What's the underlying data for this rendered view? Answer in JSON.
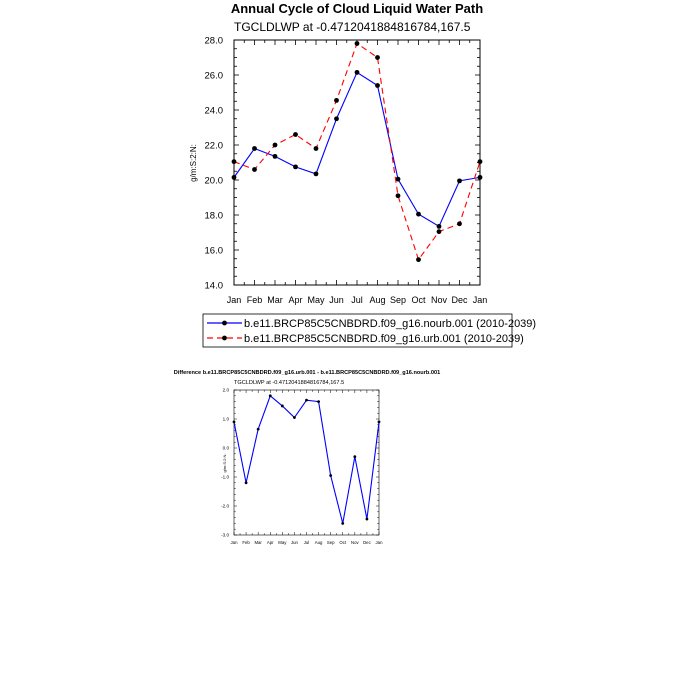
{
  "months": [
    "Jan",
    "Feb",
    "Mar",
    "Apr",
    "May",
    "Jun",
    "Jul",
    "Aug",
    "Sep",
    "Oct",
    "Nov",
    "Dec",
    "Jan"
  ],
  "chart_data": [
    {
      "type": "line",
      "title": "Annual Cycle of Cloud Liquid Water Path",
      "subtitle": "TGCLDLWP at -0.4712041884816784,167.5",
      "xlabel": "",
      "ylabel": "g/m:S:2:N:",
      "ylim": [
        14.0,
        28.0
      ],
      "yticks": [
        "14.0",
        "16.0",
        "18.0",
        "20.0",
        "22.0",
        "24.0",
        "26.0",
        "28.0"
      ],
      "grid": false,
      "legend_placement": "bottom",
      "series": [
        {
          "name": "b.e11.BRCP85C5CNBDRD.f09_g16.nourb.001 (2010-2039)",
          "color": "#0000ff",
          "dash": "solid",
          "values": [
            20.15,
            21.8,
            21.35,
            20.75,
            20.35,
            23.5,
            26.15,
            25.4,
            20.05,
            18.05,
            17.35,
            19.95,
            20.15
          ]
        },
        {
          "name": "b.e11.BRCP85C5CNBDRD.f09_g16.urb.001 (2010-2039)",
          "color": "#ff0000",
          "dash": "dashed",
          "values": [
            21.05,
            20.6,
            22.0,
            22.6,
            21.8,
            24.55,
            27.8,
            27.0,
            19.1,
            15.45,
            17.05,
            17.5,
            21.05
          ]
        }
      ]
    },
    {
      "type": "line",
      "title": "Difference b.e11.BRCP85C5CNBDRD.f09_g16.urb.001 - b.e11.BRCP85C5CNBDRD.f09_g16.nourb.001",
      "subtitle": "TGCLDLWP at -0.4712041884816784,167.5",
      "xlabel": "",
      "ylabel": "g/m:S:2:N:",
      "ylim": [
        -3.0,
        2.0
      ],
      "yticks": [
        "-3.0",
        "-2.0",
        "-1.0",
        "0.0",
        "1.0",
        "2.0"
      ],
      "grid": false,
      "series": [
        {
          "color": "#0000ff",
          "dash": "solid",
          "values": [
            0.9,
            -1.2,
            0.65,
            1.8,
            1.45,
            1.05,
            1.65,
            1.6,
            -0.95,
            -2.6,
            -0.3,
            -2.45,
            0.9
          ]
        }
      ]
    }
  ]
}
